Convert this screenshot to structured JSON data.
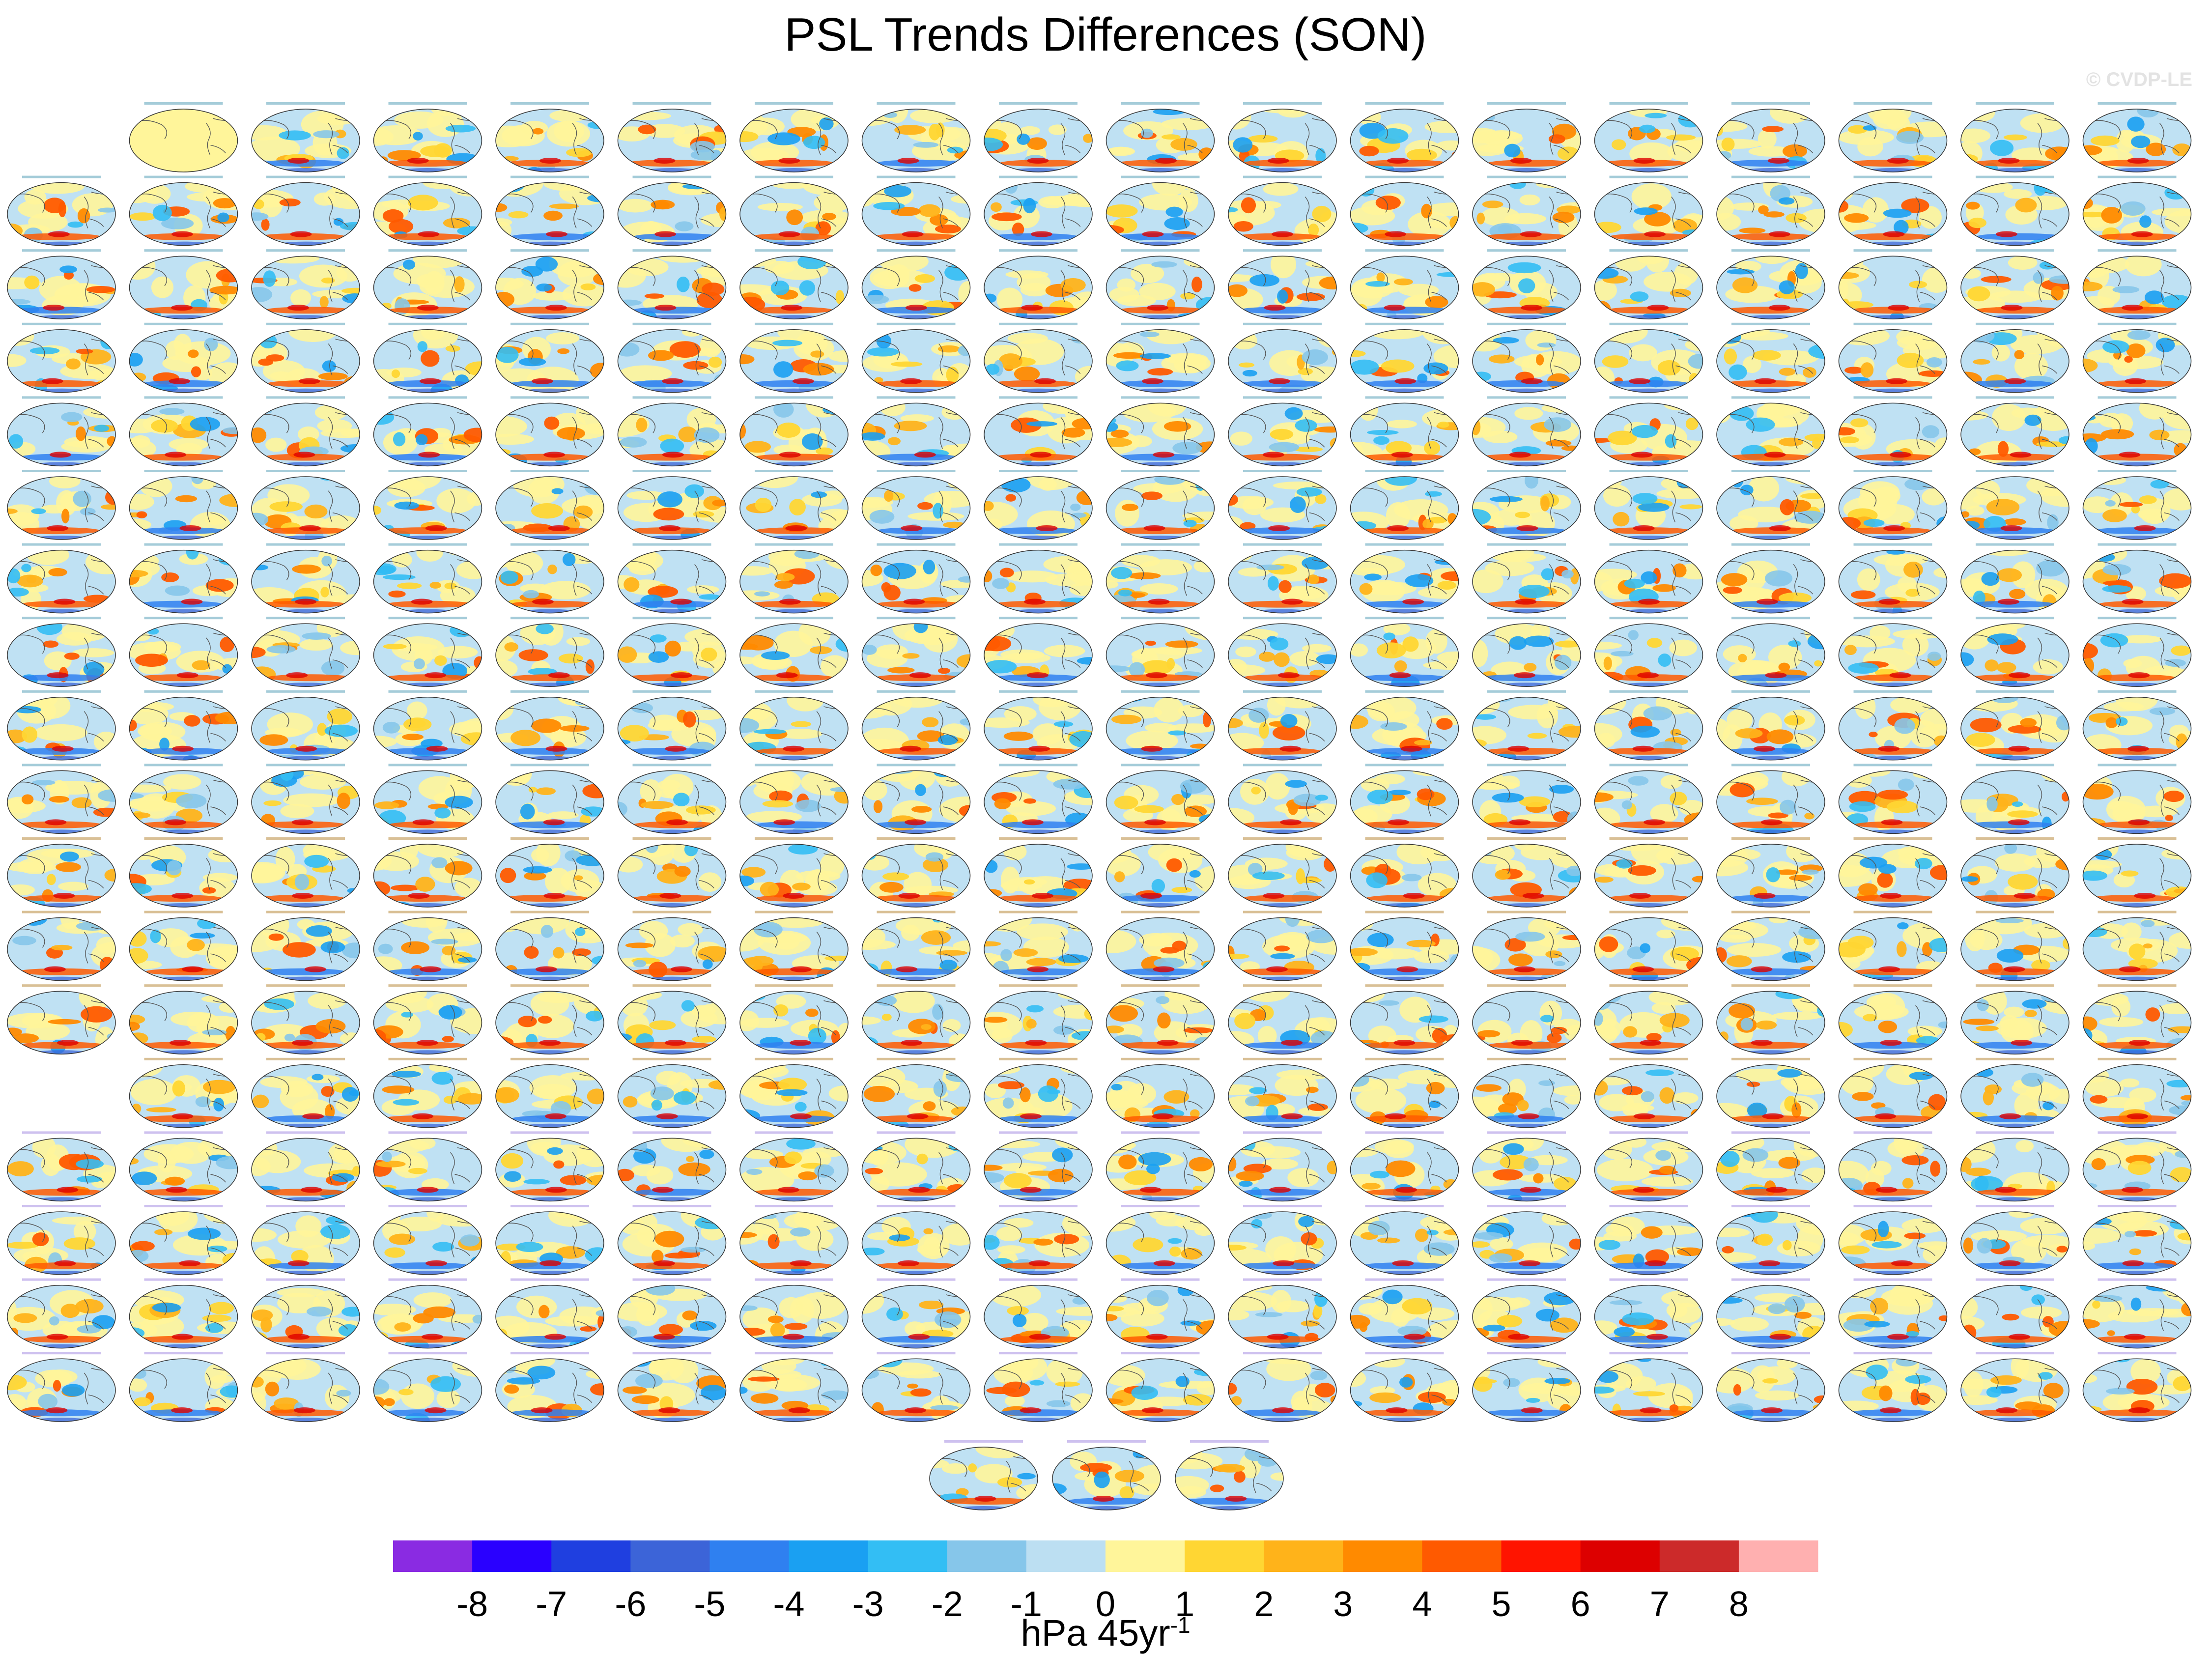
{
  "title": "PSL Trends Differences (SON)",
  "watermark": "© CVDP-LE",
  "colorbar": {
    "levels": [
      "-8",
      "-7",
      "-6",
      "-5",
      "-4",
      "-3",
      "-2",
      "-1",
      "0",
      "1",
      "2",
      "3",
      "4",
      "5",
      "6",
      "7",
      "8"
    ],
    "colors": [
      "#8a2be2",
      "#2a00ff",
      "#1f3fe0",
      "#3c64d8",
      "#2f80f0",
      "#1aa0f2",
      "#33bef4",
      "#86c6ea",
      "#bcdff2",
      "#fff59a",
      "#ffd633",
      "#ffb31a",
      "#ff8a00",
      "#ff5a00",
      "#ff1400",
      "#dd0000",
      "#cc2a2a",
      "#ffb0b0"
    ],
    "units_base": "hPa 45yr",
    "units_exp": "-1"
  },
  "chart_data": {
    "type": "heatmap",
    "title": "PSL Trends Differences (SON)",
    "description_level": "grid of global map panels",
    "rows": [
      {
        "row": 1,
        "panels": 17,
        "first_panel": "obs-rank (uniform yellow)"
      },
      {
        "row": 2,
        "panels": 18
      },
      {
        "row": 3,
        "panels": 18
      },
      {
        "row": 4,
        "panels": 18
      },
      {
        "row": 5,
        "panels": 18
      },
      {
        "row": 6,
        "panels": 18
      },
      {
        "row": 7,
        "panels": 18
      },
      {
        "row": 8,
        "panels": 18
      },
      {
        "row": 9,
        "panels": 18
      },
      {
        "row": 10,
        "panels": 18
      },
      {
        "row": 11,
        "panels": 18
      },
      {
        "row": 12,
        "panels": 18
      },
      {
        "row": 13,
        "panels": 18
      },
      {
        "row": 14,
        "panels": 17
      },
      {
        "row": 15,
        "panels": 18
      },
      {
        "row": 16,
        "panels": 18
      },
      {
        "row": 17,
        "panels": 18
      },
      {
        "row": 18,
        "panels": 18
      },
      {
        "row": 19,
        "panels": 3
      }
    ],
    "colorbar_range": [
      -8,
      8
    ],
    "colorbar_units": "hPa 45yr-1"
  }
}
